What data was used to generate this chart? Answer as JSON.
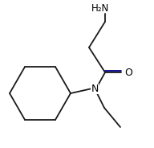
{
  "background_color": "#ffffff",
  "bond_color": "#1a1a1a",
  "text_color": "#000000",
  "double_bond_color": "#00008B",
  "label_H2N": "H₂N",
  "label_O": "O",
  "label_N": "N",
  "figsize": [
    1.92,
    1.84
  ],
  "dpi": 100,
  "xlim": [
    0,
    192
  ],
  "ylim": [
    0,
    184
  ]
}
